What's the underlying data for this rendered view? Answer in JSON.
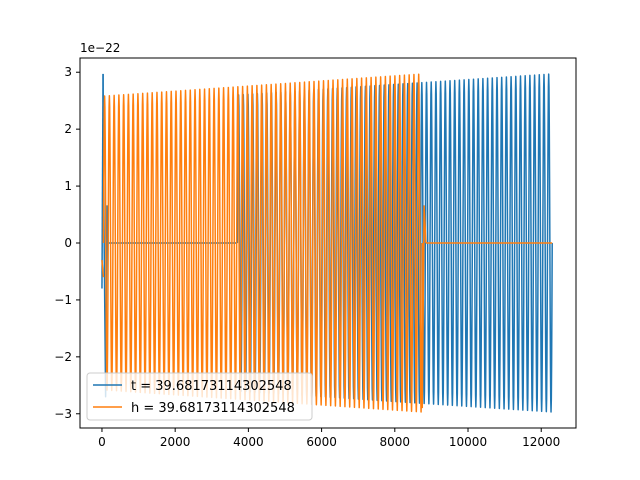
{
  "chart_data": {
    "type": "line",
    "title": "",
    "xlabel": "",
    "ylabel": "",
    "offset_label": "1e−22",
    "xlim": [
      -600,
      12950
    ],
    "ylim": [
      -3.25,
      3.25
    ],
    "x_ticks": [
      0,
      2000,
      4000,
      6000,
      8000,
      10000,
      12000
    ],
    "x_tick_labels": [
      "0",
      "2000",
      "4000",
      "6000",
      "8000",
      "10000",
      "12000"
    ],
    "y_ticks": [
      -3,
      -2,
      -1,
      0,
      1,
      2,
      3
    ],
    "y_tick_labels": [
      "−3",
      "−2",
      "−1",
      "0",
      "1",
      "2",
      "3"
    ],
    "grid": false,
    "legend_position": "lower-left",
    "series": [
      {
        "name": "t = 39.68173114302548",
        "color": "#1f77b4",
        "segments": [
          {
            "kind": "line",
            "x": [
              0,
              30
            ],
            "y": [
              -0.8,
              2.97
            ]
          },
          {
            "kind": "line",
            "x": [
              30,
              60,
              100,
              140,
              170,
              200,
              230
            ],
            "y": [
              2.97,
              0.0,
              -2.7,
              0.65,
              0.0,
              0.0,
              0.0
            ]
          },
          {
            "kind": "line",
            "x": [
              230,
              3700
            ],
            "y": [
              0.0,
              0.0
            ]
          },
          {
            "kind": "oscillation",
            "x_start": 3700,
            "x_end": 12300,
            "cycles": 67,
            "amp_start": 2.6,
            "amp_end": 2.97
          }
        ]
      },
      {
        "name": "h = 39.68173114302548",
        "color": "#ff7f0e",
        "segments": [
          {
            "kind": "line",
            "x": [
              0,
              40
            ],
            "y": [
              -0.3,
              -0.6
            ]
          },
          {
            "kind": "oscillation",
            "x_start": 40,
            "x_end": 8750,
            "cycles": 67,
            "amp_start": 2.58,
            "amp_end": 2.97
          },
          {
            "kind": "line",
            "x": [
              8750,
              8800,
              8850
            ],
            "y": [
              -2.9,
              0.65,
              0.0
            ]
          },
          {
            "kind": "line",
            "x": [
              8850,
              12300
            ],
            "y": [
              0.0,
              0.0
            ]
          }
        ]
      }
    ]
  }
}
